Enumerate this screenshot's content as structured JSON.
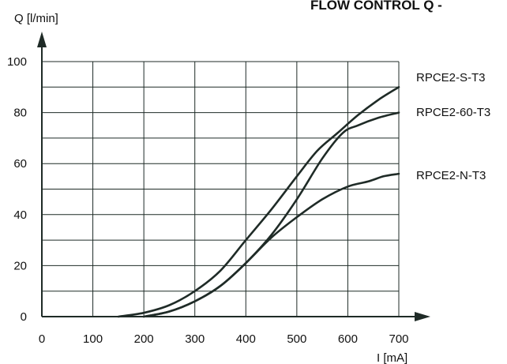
{
  "chart_data": {
    "type": "line",
    "title": "FLOW CONTROL Q -",
    "xlabel": "I [mA]",
    "ylabel": "Q [l/min]",
    "xlim": [
      0,
      700
    ],
    "ylim": [
      0,
      100
    ],
    "x_ticks": [
      0,
      100,
      200,
      300,
      400,
      500,
      600,
      700
    ],
    "y_ticks": [
      0,
      20,
      40,
      60,
      80,
      100
    ],
    "grid": {
      "x_step": 100,
      "y_step": 10
    },
    "legend": "series labels at right end of curves",
    "line_color": "#1f2b27",
    "series": [
      {
        "name": "RPCE2-S-T3",
        "points": [
          [
            150,
            0
          ],
          [
            200,
            1.5
          ],
          [
            250,
            4.5
          ],
          [
            300,
            10
          ],
          [
            350,
            18
          ],
          [
            400,
            30
          ],
          [
            450,
            42
          ],
          [
            500,
            55
          ],
          [
            540,
            65
          ],
          [
            580,
            72
          ],
          [
            620,
            79
          ],
          [
            660,
            85
          ],
          [
            700,
            90
          ]
        ]
      },
      {
        "name": "RPCE2-60-T3",
        "points": [
          [
            200,
            0
          ],
          [
            250,
            2
          ],
          [
            300,
            6
          ],
          [
            350,
            12
          ],
          [
            400,
            21
          ],
          [
            450,
            32
          ],
          [
            500,
            46
          ],
          [
            550,
            62
          ],
          [
            590,
            72
          ],
          [
            620,
            75
          ],
          [
            660,
            78
          ],
          [
            700,
            80
          ]
        ]
      },
      {
        "name": "RPCE2-N-T3",
        "points": [
          [
            200,
            0
          ],
          [
            250,
            2
          ],
          [
            300,
            6
          ],
          [
            350,
            12
          ],
          [
            400,
            21
          ],
          [
            450,
            31
          ],
          [
            500,
            39
          ],
          [
            550,
            46
          ],
          [
            600,
            51
          ],
          [
            640,
            53
          ],
          [
            670,
            55
          ],
          [
            700,
            56
          ]
        ]
      }
    ]
  }
}
